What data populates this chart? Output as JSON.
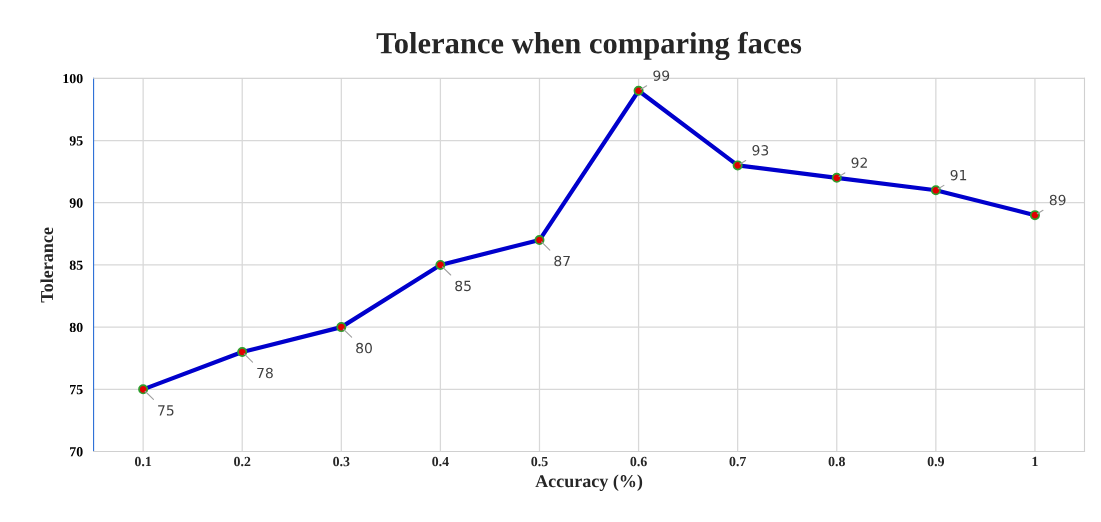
{
  "chart_data": {
    "type": "line",
    "title": "Tolerance when comparing faces",
    "xlabel": "Accuracy (%)",
    "ylabel": "Tolerance",
    "categories": [
      "0.1",
      "0.2",
      "0.3",
      "0.4",
      "0.5",
      "0.6",
      "0.7",
      "0.8",
      "0.9",
      "1"
    ],
    "series": [
      {
        "color": "#0000cc",
        "values": [
          75,
          78,
          80,
          85,
          87,
          99,
          93,
          92,
          91,
          89
        ]
      }
    ],
    "ylim": [
      70,
      100
    ],
    "yticks": [
      70,
      75,
      80,
      85,
      90,
      95,
      100
    ],
    "grid": true,
    "marker": "circle",
    "line_style": "solid",
    "data_labels": true
  }
}
